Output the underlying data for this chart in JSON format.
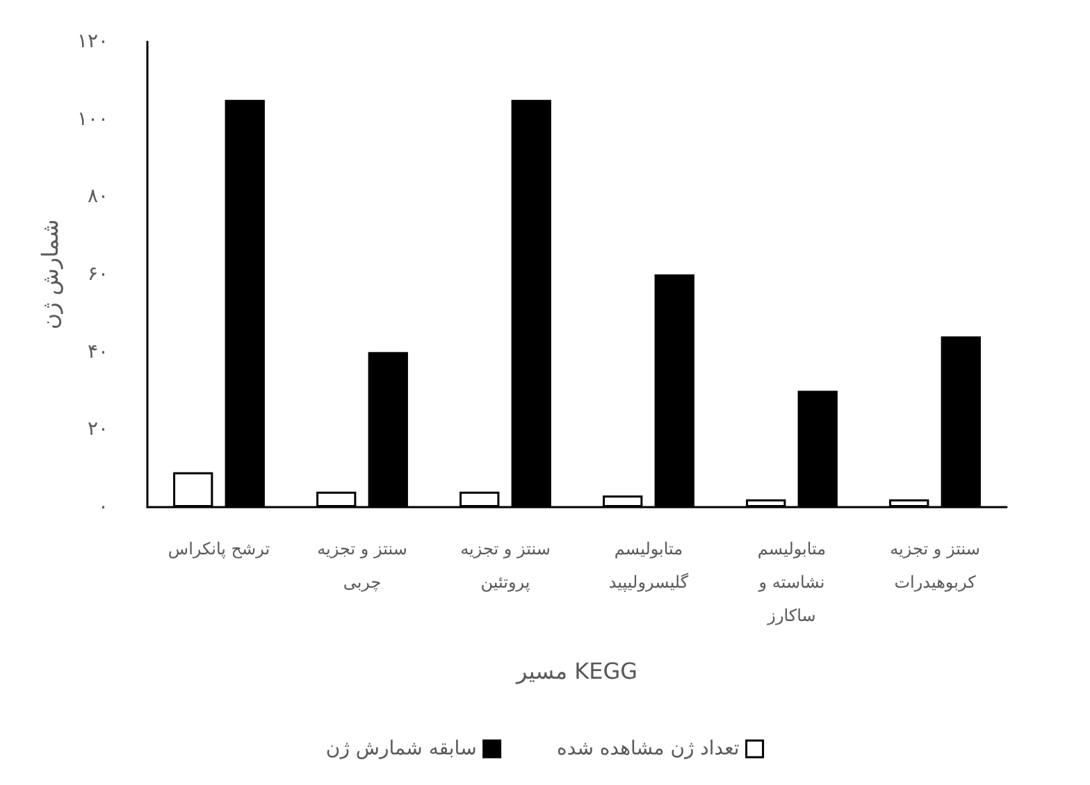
{
  "chart_data": {
    "type": "bar",
    "xlabel": "مسیر KEGG",
    "ylabel": "شمارش ژن",
    "categories": [
      "ترشح پانکراس",
      "سنتز و تجزیه چربی",
      "سنتز و تجزیه پروتئین",
      "متابولیسم گلیسرولیپید",
      "متابولیسم نشاسته و ساکارز",
      "سنتز و تجزیه کربوهیدرات"
    ],
    "series": [
      {
        "name": "تعداد ژن مشاهده شده",
        "color": "#ffffff",
        "values": [
          9,
          4,
          4,
          3,
          2,
          2
        ]
      },
      {
        "name": "سابقه شمارش ژن",
        "color": "#000000",
        "values": [
          105,
          40,
          105,
          60,
          30,
          44
        ]
      }
    ],
    "ylim": [
      0,
      120
    ],
    "yticks": [
      {
        "value": 0,
        "label": "۰"
      },
      {
        "value": 20,
        "label": "۲۰"
      },
      {
        "value": 40,
        "label": "۴۰"
      },
      {
        "value": 60,
        "label": "۶۰"
      },
      {
        "value": 80,
        "label": "۸۰"
      },
      {
        "value": 100,
        "label": "۱۰۰"
      },
      {
        "value": 120,
        "label": "۱۲۰"
      }
    ],
    "grid": false,
    "legend": "bottom"
  }
}
